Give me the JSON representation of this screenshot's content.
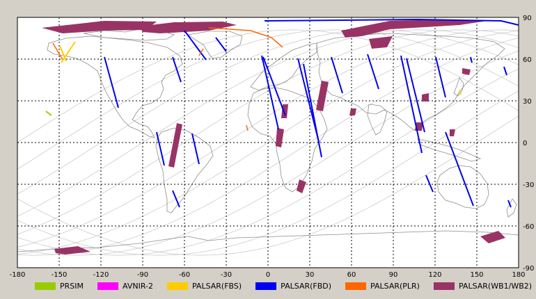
{
  "map": {
    "projection": "equirectangular",
    "xlim": [
      -180,
      180
    ],
    "ylim": [
      -90,
      90
    ],
    "lon_ticks": [
      "-180",
      "-150",
      "-120",
      "-90",
      "-60",
      "-30",
      "0",
      "30",
      "60",
      "90",
      "120",
      "150",
      "180"
    ],
    "lat_ticks": [
      "90",
      "60",
      "30",
      "0",
      "-30",
      "-60",
      "-90"
    ],
    "grid": "dashed, every 30 degrees",
    "orbit_tracks": "light gray sinusoidal orbit lines",
    "colors": {
      "background": "#ffffff",
      "land_outline": "#8c8c8c",
      "orbit": "#c4c4c4",
      "grid": "#000000"
    }
  },
  "legend": [
    {
      "label": "PRSIM",
      "color": "#99cc00"
    },
    {
      "label": "AVNIR-2",
      "color": "#ff00ff"
    },
    {
      "label": "PALSAR(FBS)",
      "color": "#ffcc00"
    },
    {
      "label": "PALSAR(FBD)",
      "color": "#0000ee"
    },
    {
      "label": "PALSAR(PLR)",
      "color": "#ff6600"
    },
    {
      "label": "PALSAR(WB1/WB2)",
      "color": "#993366"
    }
  ]
}
